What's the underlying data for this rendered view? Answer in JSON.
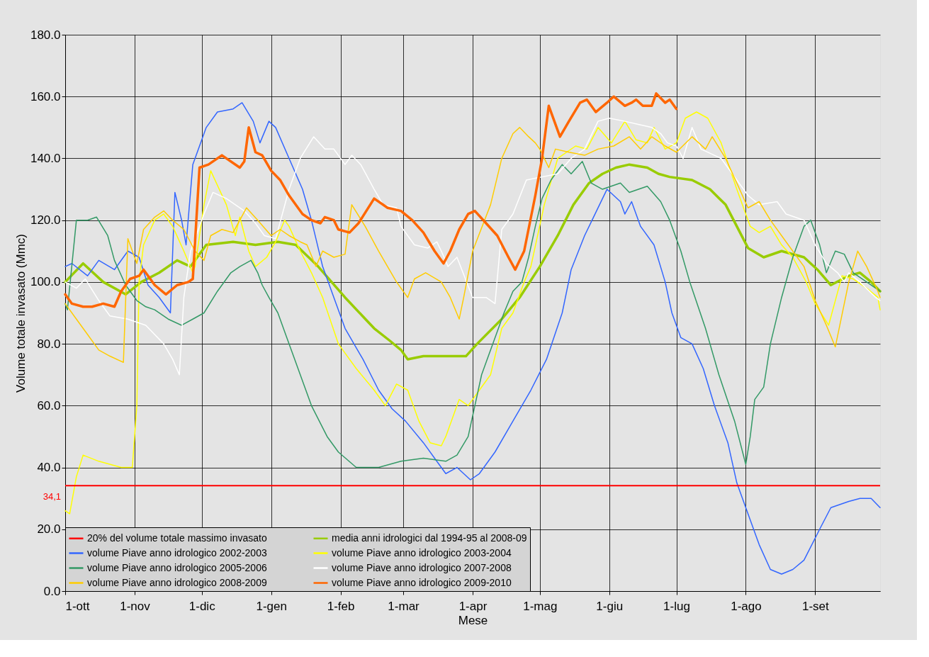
{
  "chart_data": {
    "type": "line",
    "xlabel": "Mese",
    "ylabel": "Volume totale invasato (Mmc)",
    "xlim": [
      "2009-10-01",
      "2010-09-30"
    ],
    "ylim": [
      0,
      180
    ],
    "xticks": [
      {
        "value": "2009-10-01",
        "label": "1-ott"
      },
      {
        "value": "2009-11-01",
        "label": "1-nov"
      },
      {
        "value": "2009-12-01",
        "label": "1-dic"
      },
      {
        "value": "2010-01-01",
        "label": "1-gen"
      },
      {
        "value": "2010-02-01",
        "label": "1-feb"
      },
      {
        "value": "2010-03-01",
        "label": "1-mar"
      },
      {
        "value": "2010-04-01",
        "label": "1-apr"
      },
      {
        "value": "2010-05-01",
        "label": "1-mag"
      },
      {
        "value": "2010-06-01",
        "label": "1-giu"
      },
      {
        "value": "2010-07-01",
        "label": "1-lug"
      },
      {
        "value": "2010-08-01",
        "label": "1-ago"
      },
      {
        "value": "2010-09-01",
        "label": "1-set"
      }
    ],
    "yticks": [
      {
        "value": 0,
        "label": "0.0"
      },
      {
        "value": 20,
        "label": "20.0"
      },
      {
        "value": 40,
        "label": "40.0"
      },
      {
        "value": 60,
        "label": "60.0"
      },
      {
        "value": 80,
        "label": "80.0"
      },
      {
        "value": 100,
        "label": "100.0"
      },
      {
        "value": 120,
        "label": "120.0"
      },
      {
        "value": 140,
        "label": "140.0"
      },
      {
        "value": 160,
        "label": "160.0"
      },
      {
        "value": 180,
        "label": "180.0"
      }
    ],
    "grid": true,
    "legend": "bottom left",
    "line_style": "solid",
    "ref_lines": [
      {
        "axis": "y",
        "value": 34.1,
        "label": "20% del volume totale massimo invasato",
        "color": "#ff0000"
      }
    ],
    "annotations": [
      "34,1"
    ],
    "series": [
      {
        "name": "media anni idrologici dal 1994-95 al 2008-09",
        "color": "#99cc00",
        "x": [
          "2009-10-01",
          "2009-10-09",
          "2009-10-18",
          "2009-10-28",
          "2009-11-04",
          "2009-11-12",
          "2009-11-20",
          "2009-11-26",
          "2009-12-03",
          "2009-12-15",
          "2009-12-25",
          "2010-01-04",
          "2010-01-12",
          "2010-01-22",
          "2010-02-03",
          "2010-02-16",
          "2010-02-23",
          "2010-02-28",
          "2010-03-03",
          "2010-03-10",
          "2010-03-25",
          "2010-03-29",
          "2010-04-03",
          "2010-04-14",
          "2010-04-22",
          "2010-05-01",
          "2010-05-09",
          "2010-05-16",
          "2010-05-23",
          "2010-05-29",
          "2010-06-04",
          "2010-06-10",
          "2010-06-18",
          "2010-06-23",
          "2010-06-28",
          "2010-07-08",
          "2010-07-16",
          "2010-07-23",
          "2010-07-28",
          "2010-08-02",
          "2010-08-09",
          "2010-08-17",
          "2010-08-27",
          "2010-09-02",
          "2010-09-08",
          "2010-09-16",
          "2010-09-21",
          "2010-09-26",
          "2010-09-30"
        ],
        "values": [
          100,
          106,
          100,
          96,
          100,
          103,
          107,
          105,
          112,
          113,
          112,
          113,
          112,
          105,
          95,
          85,
          81,
          78,
          75,
          76,
          76,
          76,
          80,
          88,
          95,
          105,
          115,
          125,
          132,
          135,
          137,
          138,
          137,
          135,
          134,
          133,
          130,
          125,
          118,
          111,
          108,
          110,
          108,
          104,
          99,
          102,
          103,
          100,
          97
        ]
      },
      {
        "name": "volume Piave anno idrologico 2002-2003",
        "color": "#3366ff",
        "x": [
          "2009-10-01",
          "2009-10-04",
          "2009-10-11",
          "2009-10-16",
          "2009-10-23",
          "2009-10-29",
          "2009-11-03",
          "2009-11-07",
          "2009-11-12",
          "2009-11-17",
          "2009-11-19",
          "2009-11-22",
          "2009-11-24",
          "2009-11-27",
          "2009-11-30",
          "2009-12-03",
          "2009-12-08",
          "2009-12-15",
          "2009-12-19",
          "2009-12-24",
          "2009-12-27",
          "2009-12-31",
          "2010-01-03",
          "2010-01-09",
          "2010-01-15",
          "2010-01-19",
          "2010-01-24",
          "2010-01-29",
          "2010-02-03",
          "2010-02-11",
          "2010-02-18",
          "2010-02-24",
          "2010-03-02",
          "2010-03-10",
          "2010-03-15",
          "2010-03-20",
          "2010-03-25",
          "2010-03-31",
          "2010-04-04",
          "2010-04-11",
          "2010-04-19",
          "2010-04-27",
          "2010-05-04",
          "2010-05-11",
          "2010-05-15",
          "2010-05-21",
          "2010-05-25",
          "2010-05-31",
          "2010-06-06",
          "2010-06-08",
          "2010-06-11",
          "2010-06-15",
          "2010-06-21",
          "2010-06-26",
          "2010-06-29",
          "2010-07-03",
          "2010-07-08",
          "2010-07-13",
          "2010-07-18",
          "2010-07-24",
          "2010-07-28",
          "2010-08-02",
          "2010-08-07",
          "2010-08-12",
          "2010-08-17",
          "2010-08-22",
          "2010-08-27",
          "2010-09-03",
          "2010-09-08",
          "2010-09-16",
          "2010-09-21",
          "2010-09-26",
          "2010-09-30"
        ],
        "values": [
          105,
          106,
          102,
          107,
          104,
          110,
          108,
          99,
          95,
          90,
          129,
          120,
          112,
          138,
          144,
          150,
          155,
          156,
          158,
          152,
          145,
          152,
          150,
          140,
          130,
          120,
          105,
          95,
          85,
          75,
          65,
          59,
          55,
          48,
          43,
          38,
          40,
          36,
          38,
          45,
          55,
          65,
          75,
          90,
          104,
          115,
          121,
          130,
          126,
          122,
          126,
          118,
          112,
          100,
          90,
          82,
          80,
          72,
          60,
          48,
          35,
          25,
          15,
          7,
          5.5,
          7,
          10,
          20,
          27,
          29,
          30,
          30,
          27
        ]
      },
      {
        "name": "volume Piave anno idrologico 2003-2004",
        "color": "#ffff00",
        "x": [
          "2009-10-01",
          "2009-10-03",
          "2009-10-06",
          "2009-10-09",
          "2009-10-16",
          "2009-10-26",
          "2009-10-31",
          "2009-11-02",
          "2009-11-03",
          "2009-11-05",
          "2009-11-10",
          "2009-11-14",
          "2009-11-18",
          "2009-11-23",
          "2009-11-27",
          "2009-11-28",
          "2009-12-02",
          "2009-12-05",
          "2009-12-12",
          "2009-12-16",
          "2009-12-18",
          "2009-12-22",
          "2009-12-25",
          "2009-12-30",
          "2010-01-03",
          "2010-01-07",
          "2010-01-09",
          "2010-01-14",
          "2010-01-19",
          "2010-01-24",
          "2010-01-31",
          "2010-02-08",
          "2010-02-16",
          "2010-02-21",
          "2010-02-26",
          "2010-03-03",
          "2010-03-08",
          "2010-03-13",
          "2010-03-18",
          "2010-03-20",
          "2010-03-26",
          "2010-03-30",
          "2010-04-04",
          "2010-04-09",
          "2010-04-14",
          "2010-04-19",
          "2010-04-24",
          "2010-04-27",
          "2010-05-03",
          "2010-05-09",
          "2010-05-17",
          "2010-05-22",
          "2010-05-27",
          "2010-06-02",
          "2010-06-08",
          "2010-06-13",
          "2010-06-18",
          "2010-06-21",
          "2010-06-26",
          "2010-07-01",
          "2010-07-05",
          "2010-07-10",
          "2010-07-15",
          "2010-07-21",
          "2010-07-28",
          "2010-08-03",
          "2010-08-07",
          "2010-08-12",
          "2010-08-17",
          "2010-08-22",
          "2010-08-28",
          "2010-09-01",
          "2010-09-07",
          "2010-09-13",
          "2010-09-18",
          "2010-09-24",
          "2010-09-29",
          "2010-09-30"
        ],
        "values": [
          26,
          25,
          37,
          44,
          42,
          40,
          40,
          60,
          100,
          112,
          120,
          122,
          118,
          110,
          103,
          105,
          125,
          136,
          125,
          115,
          121,
          110,
          105,
          108,
          113,
          120,
          118,
          110,
          103,
          95,
          80,
          72,
          65,
          60,
          67,
          65,
          55,
          48,
          47,
          50,
          62,
          60,
          65,
          70,
          85,
          90,
          100,
          105,
          125,
          140,
          144,
          143,
          150,
          145,
          152,
          146,
          145,
          150,
          143,
          145,
          153,
          155,
          153,
          145,
          130,
          118,
          116,
          118,
          112,
          108,
          100,
          93,
          86,
          102,
          101,
          98,
          95,
          91
        ]
      },
      {
        "name": "volume Piave anno idrologico 2005-2006",
        "color": "#339966",
        "x": [
          "2009-10-01",
          "2009-10-02",
          "2009-10-06",
          "2009-10-11",
          "2009-10-15",
          "2009-10-20",
          "2009-10-23",
          "2009-10-28",
          "2009-11-02",
          "2009-11-06",
          "2009-11-10",
          "2009-11-16",
          "2009-11-22",
          "2009-11-27",
          "2009-12-02",
          "2009-12-08",
          "2009-12-14",
          "2009-12-18",
          "2009-12-23",
          "2009-12-26",
          "2009-12-28",
          "2009-12-31",
          "2010-01-04",
          "2010-01-08",
          "2010-01-14",
          "2010-01-19",
          "2010-01-26",
          "2010-01-31",
          "2010-02-08",
          "2010-02-18",
          "2010-02-28",
          "2010-03-10",
          "2010-03-20",
          "2010-03-25",
          "2010-03-30",
          "2010-04-05",
          "2010-04-11",
          "2010-04-15",
          "2010-04-19",
          "2010-04-23",
          "2010-04-26",
          "2010-04-29",
          "2010-05-02",
          "2010-05-06",
          "2010-05-11",
          "2010-05-15",
          "2010-05-20",
          "2010-05-24",
          "2010-05-29",
          "2010-06-06",
          "2010-06-10",
          "2010-06-18",
          "2010-06-24",
          "2010-06-28",
          "2010-07-03",
          "2010-07-07",
          "2010-07-14",
          "2010-07-20",
          "2010-07-27",
          "2010-08-01",
          "2010-08-03",
          "2010-08-05",
          "2010-08-09",
          "2010-08-12",
          "2010-08-17",
          "2010-08-22",
          "2010-08-27",
          "2010-08-30",
          "2010-09-03",
          "2010-09-06",
          "2010-09-10",
          "2010-09-14",
          "2010-09-18",
          "2010-09-30"
        ],
        "values": [
          93,
          91,
          120,
          120,
          121,
          115,
          107,
          99,
          94,
          92,
          91,
          88,
          86,
          88,
          90,
          97,
          103,
          105,
          107,
          103,
          99,
          95,
          90,
          82,
          70,
          60,
          50,
          45,
          40,
          40,
          42,
          43,
          42,
          44,
          50,
          70,
          82,
          90,
          97,
          100,
          108,
          118,
          127,
          133,
          138,
          135,
          139,
          132,
          130,
          132,
          129,
          131,
          126,
          120,
          110,
          100,
          85,
          70,
          55,
          41,
          50,
          62,
          66,
          80,
          95,
          108,
          118,
          120,
          112,
          103,
          110,
          109,
          103,
          97
        ]
      },
      {
        "name": "volume Piave anno idrologico 2007-2008",
        "color": "#ffffff",
        "x": [
          "2009-10-01",
          "2009-10-06",
          "2009-10-10",
          "2009-10-16",
          "2009-10-21",
          "2009-10-29",
          "2009-11-06",
          "2009-11-14",
          "2009-11-18",
          "2009-11-21",
          "2009-11-23",
          "2009-11-26",
          "2009-12-02",
          "2009-12-06",
          "2009-12-12",
          "2009-12-20",
          "2009-12-25",
          "2009-12-29",
          "2010-01-03",
          "2010-01-09",
          "2010-01-14",
          "2010-01-20",
          "2010-01-25",
          "2010-01-29",
          "2010-02-03",
          "2010-02-06",
          "2010-02-10",
          "2010-02-16",
          "2010-02-20",
          "2010-02-26",
          "2010-02-28",
          "2010-03-06",
          "2010-03-12",
          "2010-03-16",
          "2010-03-18",
          "2010-03-21",
          "2010-03-25",
          "2010-04-01",
          "2010-04-07",
          "2010-04-11",
          "2010-04-14",
          "2010-04-19",
          "2010-04-25",
          "2010-05-02",
          "2010-05-09",
          "2010-05-15",
          "2010-05-21",
          "2010-05-27",
          "2010-06-01",
          "2010-06-08",
          "2010-06-14",
          "2010-06-20",
          "2010-06-24",
          "2010-06-27",
          "2010-07-01",
          "2010-07-04",
          "2010-07-08",
          "2010-07-12",
          "2010-07-18",
          "2010-07-21",
          "2010-07-28",
          "2010-08-02",
          "2010-08-07",
          "2010-08-15",
          "2010-08-19",
          "2010-08-27",
          "2010-09-01",
          "2010-09-06",
          "2010-09-11",
          "2010-09-14",
          "2010-09-16",
          "2010-09-21",
          "2010-09-28",
          "2010-09-30"
        ],
        "values": [
          100,
          98,
          101,
          94,
          89,
          88,
          86,
          80,
          75,
          70,
          95,
          110,
          122,
          129,
          127,
          123,
          119,
          115,
          114,
          130,
          140,
          147,
          143,
          143,
          138,
          141,
          138,
          130,
          125,
          124,
          118,
          112,
          111,
          113,
          110,
          105,
          108,
          95,
          95,
          93,
          117,
          122,
          133,
          134,
          135,
          140,
          143,
          152,
          153,
          152,
          151,
          150,
          148,
          145,
          144,
          140,
          150,
          143,
          141,
          140,
          133,
          128,
          125,
          126,
          122,
          120,
          112,
          106,
          103,
          100,
          103,
          100,
          95,
          94
        ]
      },
      {
        "name": "volume Piave anno idrologico 2008-2009",
        "color": "#ffcc00",
        "x": [
          "2009-10-01",
          "2009-10-06",
          "2009-10-11",
          "2009-10-16",
          "2009-10-21",
          "2009-10-27",
          "2009-10-29",
          "2009-11-02",
          "2009-11-05",
          "2009-11-10",
          "2009-11-14",
          "2009-11-18",
          "2009-11-23",
          "2009-11-28",
          "2009-12-02",
          "2009-12-05",
          "2009-12-10",
          "2009-12-15",
          "2009-12-21",
          "2009-12-26",
          "2010-01-01",
          "2010-01-05",
          "2010-01-09",
          "2010-01-14",
          "2010-01-17",
          "2010-01-21",
          "2010-01-24",
          "2010-01-29",
          "2010-02-03",
          "2010-02-06",
          "2010-02-12",
          "2010-02-18",
          "2010-02-26",
          "2010-03-03",
          "2010-03-06",
          "2010-03-11",
          "2010-03-18",
          "2010-03-22",
          "2010-03-26",
          "2010-03-28",
          "2010-04-01",
          "2010-04-09",
          "2010-04-14",
          "2010-04-19",
          "2010-04-22",
          "2010-04-26",
          "2010-04-29",
          "2010-05-01",
          "2010-05-05",
          "2010-05-08",
          "2010-05-14",
          "2010-05-21",
          "2010-05-27",
          "2010-06-03",
          "2010-06-10",
          "2010-06-15",
          "2010-06-20",
          "2010-06-26",
          "2010-07-01",
          "2010-07-08",
          "2010-07-14",
          "2010-07-17",
          "2010-07-23",
          "2010-08-02",
          "2010-08-07",
          "2010-08-12",
          "2010-08-19",
          "2010-08-27",
          "2010-09-01",
          "2010-09-06",
          "2010-09-10",
          "2010-09-16",
          "2010-09-20",
          "2010-09-24",
          "2010-09-29",
          "2010-09-30"
        ],
        "values": [
          93,
          88,
          83,
          78,
          76,
          74,
          114,
          106,
          117,
          121,
          123,
          120,
          117,
          110,
          107,
          115,
          117,
          116,
          124,
          120,
          115,
          117,
          115,
          113,
          112,
          105,
          110,
          108,
          109,
          125,
          118,
          110,
          100,
          95,
          101,
          103,
          100,
          95,
          88,
          95,
          110,
          125,
          140,
          148,
          150,
          147,
          145,
          143,
          137,
          143,
          142,
          141,
          143,
          144,
          147,
          143,
          147,
          144,
          142,
          147,
          143,
          147,
          140,
          124,
          126,
          120,
          113,
          105,
          94,
          86,
          79,
          100,
          110,
          105,
          97,
          95
        ]
      },
      {
        "name": "volume Piave anno idrologico 2009-2010",
        "color": "#ff6600",
        "x": [
          "2009-10-01",
          "2009-10-04",
          "2009-10-09",
          "2009-10-13",
          "2009-10-18",
          "2009-10-23",
          "2009-10-26",
          "2009-10-30",
          "2009-11-03",
          "2009-11-05",
          "2009-11-10",
          "2009-11-15",
          "2009-11-20",
          "2009-11-25",
          "2009-11-27",
          "2009-11-30",
          "2009-12-04",
          "2009-12-10",
          "2009-12-18",
          "2009-12-20",
          "2009-12-22",
          "2009-12-25",
          "2009-12-28",
          "2010-01-01",
          "2010-01-05",
          "2010-01-09",
          "2010-01-15",
          "2010-01-19",
          "2010-01-23",
          "2010-01-25",
          "2010-01-29",
          "2010-01-31",
          "2010-02-05",
          "2010-02-09",
          "2010-02-16",
          "2010-02-22",
          "2010-02-28",
          "2010-03-05",
          "2010-03-10",
          "2010-03-15",
          "2010-03-19",
          "2010-03-22",
          "2010-03-26",
          "2010-03-30",
          "2010-04-02",
          "2010-04-07",
          "2010-04-12",
          "2010-04-17",
          "2010-04-20",
          "2010-04-24",
          "2010-04-29",
          "2010-05-02",
          "2010-05-05",
          "2010-05-10",
          "2010-05-14",
          "2010-05-19",
          "2010-05-22",
          "2010-05-26",
          "2010-05-31",
          "2010-06-03",
          "2010-06-08",
          "2010-06-11",
          "2010-06-13",
          "2010-06-16",
          "2010-06-20",
          "2010-06-22",
          "2010-06-26",
          "2010-06-28",
          "2010-07-01"
        ],
        "values": [
          96,
          93,
          92,
          92,
          93,
          92,
          97,
          101,
          102,
          104,
          99,
          96,
          99,
          100,
          101,
          137,
          138,
          141,
          137,
          139,
          150,
          142,
          141,
          136,
          133,
          128,
          122,
          120,
          119,
          121,
          120,
          117,
          116,
          119,
          127,
          124,
          123,
          120,
          116,
          110,
          106,
          110,
          117,
          122,
          123,
          119,
          115,
          108,
          104,
          110,
          128,
          140,
          157,
          147,
          152,
          158,
          159,
          155,
          158,
          160,
          157,
          158,
          159,
          157,
          157,
          161,
          158,
          159,
          156
        ]
      }
    ]
  }
}
